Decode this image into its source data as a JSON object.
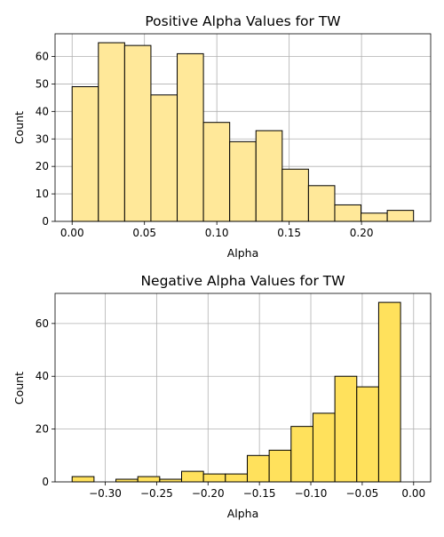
{
  "chart_data": [
    {
      "type": "bar",
      "title": "Positive Alpha Values for TW",
      "xlabel": "Alpha",
      "ylabel": "Count",
      "xlim": [
        -0.0118,
        0.2478
      ],
      "ylim": [
        0,
        68.25
      ],
      "grid": true,
      "bar_color": "#ffe899",
      "edge_color": "#000000",
      "bin_edges": [
        0.0,
        0.01815,
        0.0363,
        0.05445,
        0.0726,
        0.09075,
        0.1089,
        0.12705,
        0.1452,
        0.16335,
        0.1815,
        0.19965,
        0.2178,
        0.23595
      ],
      "counts": [
        49,
        65,
        64,
        46,
        61,
        36,
        29,
        33,
        19,
        13,
        6,
        3,
        4
      ],
      "xticks": [
        0.0,
        0.05,
        0.1,
        0.15,
        0.2
      ],
      "xtick_labels": [
        "0.00",
        "0.05",
        "0.10",
        "0.15",
        "0.20"
      ],
      "yticks": [
        0,
        10,
        20,
        30,
        40,
        50,
        60
      ],
      "ytick_labels": [
        "0",
        "10",
        "20",
        "30",
        "40",
        "50",
        "60"
      ]
    },
    {
      "type": "bar",
      "title": "Negative Alpha Values for TW",
      "xlabel": "Alpha",
      "ylabel": "Count",
      "xlim": [
        -0.3488,
        0.0166
      ],
      "ylim": [
        0,
        71.4
      ],
      "grid": true,
      "bar_color": "#ffe15c",
      "edge_color": "#000000",
      "bin_edges": [
        -0.3322,
        -0.3109,
        -0.2896,
        -0.2683,
        -0.247,
        -0.2257,
        -0.2044,
        -0.1831,
        -0.1618,
        -0.1405,
        -0.1192,
        -0.0979,
        -0.0766,
        -0.0553,
        -0.034,
        -0.0127
      ],
      "counts": [
        2,
        0,
        1,
        2,
        1,
        4,
        3,
        3,
        10,
        12,
        21,
        26,
        40,
        36,
        68
      ],
      "xticks": [
        -0.3,
        -0.25,
        -0.2,
        -0.15,
        -0.1,
        -0.05,
        0.0
      ],
      "xtick_labels": [
        "−0.30",
        "−0.25",
        "−0.20",
        "−0.15",
        "−0.10",
        "−0.05",
        "0.00"
      ],
      "yticks": [
        0,
        20,
        40,
        60
      ],
      "ytick_labels": [
        "0",
        "20",
        "40",
        "60"
      ]
    }
  ]
}
